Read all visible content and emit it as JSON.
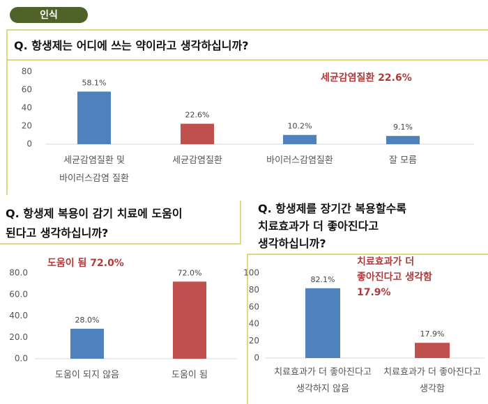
{
  "header": {
    "tab": "인식"
  },
  "chart_data": [
    {
      "type": "bar",
      "title": "Q. 항생제는 어디에 쓰는 약이라고 생각하십니까?",
      "annotation": "세균감염질환 22.6%",
      "categories": [
        "세균감염질환 및\n바이러스감염 질환",
        "세균감염질환",
        "바이러스감염질환",
        "잘 모름"
      ],
      "values": [
        58.1,
        22.6,
        10.2,
        9.1
      ],
      "value_labels": [
        "58.1%",
        "22.6%",
        "10.2%",
        "9.1%"
      ],
      "colors": [
        "#4f81bd",
        "#c0504d",
        "#4f81bd",
        "#4f81bd"
      ],
      "ylim": [
        0,
        80
      ],
      "yticks": [
        0,
        20,
        40,
        60,
        80
      ]
    },
    {
      "type": "bar",
      "title": "Q. 항생제 복용이 감기 치료에 도움이\n된다고 생각하십니까?",
      "annotation": "도움이 됨 72.0%",
      "categories": [
        "도움이 되지 않음",
        "도움이 됨"
      ],
      "values": [
        28.0,
        72.0
      ],
      "value_labels": [
        "28.0%",
        "72.0%"
      ],
      "colors": [
        "#4f81bd",
        "#c0504d"
      ],
      "ylim": [
        0,
        80
      ],
      "yticks": [
        {
          "value": 0,
          "label": "0.0"
        },
        {
          "value": 20,
          "label": "20.0"
        },
        {
          "value": 40,
          "label": "40.0"
        },
        {
          "value": 60,
          "label": "60.0"
        },
        {
          "value": 80,
          "label": "80.0"
        }
      ]
    },
    {
      "type": "bar",
      "title": "Q. 항생제를 장기간 복용할수록\n치료효과가 더 좋아진다고\n생각하십니까?",
      "annotation": "치료효과가 더\n좋아진다고 생각함\n17.9%",
      "categories": [
        "치료효과가 더 좋아진다고\n생각하지 않음",
        "치료효과가 더 좋아진다고\n생각함"
      ],
      "values": [
        82.1,
        17.9
      ],
      "value_labels": [
        "82.1%",
        "17.9%"
      ],
      "colors": [
        "#4f81bd",
        "#c0504d"
      ],
      "ylim": [
        0,
        100
      ],
      "yticks": [
        0,
        20,
        40,
        60,
        80,
        100
      ]
    }
  ]
}
